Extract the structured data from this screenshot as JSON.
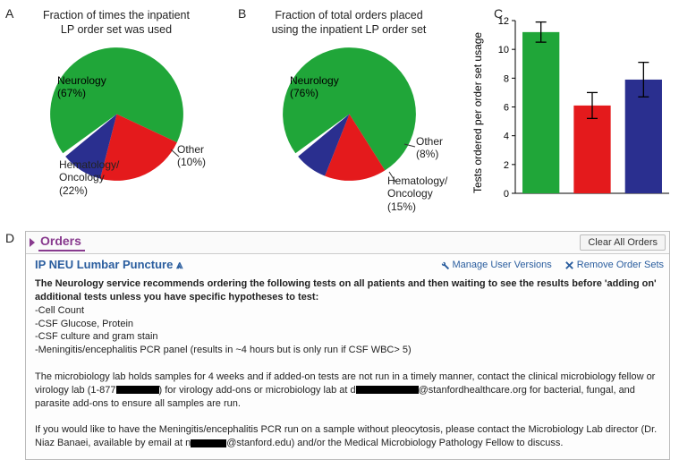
{
  "panelA": {
    "label": "A",
    "title": "Fraction of times the inpatient\nLP order set was used",
    "pie": {
      "slices": [
        {
          "label": "Neurology",
          "pct": 67,
          "color": "#20a639"
        },
        {
          "label": "Hematology/\nOncology",
          "pct": 22,
          "color": "#e41a1c"
        },
        {
          "label": "Other",
          "pct": 10,
          "color": "#2a2f8f"
        }
      ],
      "rotation_start_deg": 144
    },
    "callouts": {
      "neuro": "Neurology\n(67%)",
      "hemeonc": "Hematology/\nOncology\n(22%)",
      "other": "Other\n(10%)"
    }
  },
  "panelB": {
    "label": "B",
    "title": "Fraction of total orders placed\nusing the inpatient LP order set",
    "pie": {
      "slices": [
        {
          "label": "Neurology",
          "pct": 76,
          "color": "#20a639"
        },
        {
          "label": "Hematology/Oncology",
          "pct": 15,
          "color": "#e41a1c"
        },
        {
          "label": "Other",
          "pct": 8,
          "color": "#2a2f8f"
        }
      ],
      "rotation_start_deg": 144
    },
    "callouts": {
      "neuro": "Neurology\n(76%)",
      "hemeonc": "Hematology/\nOncology\n(15%)",
      "other": "Other\n(8%)"
    }
  },
  "panelC": {
    "label": "C",
    "ylabel": "Tests ordered per order set usage",
    "ylim": [
      0,
      12
    ],
    "ytick_step": 2,
    "bars": [
      {
        "value": 11.2,
        "err": 0.7,
        "color": "#20a639"
      },
      {
        "value": 6.1,
        "err": 0.9,
        "color": "#e41a1c"
      },
      {
        "value": 7.9,
        "err": 1.2,
        "color": "#2a2f8f"
      }
    ],
    "axis_fontsize": 11
  },
  "panelD": {
    "label": "D",
    "orders_header": "Orders",
    "clear_btn": "Clear All Orders",
    "section_title": "IP NEU Lumbar Puncture ⩓",
    "manage_link": "Manage User Versions",
    "remove_link": "Remove Order Sets",
    "body_bold": "The Neurology service recommends ordering the following tests on all patients and then waiting to see the results before 'adding on' additional tests unless you have specific hypotheses to test:",
    "body_list": [
      "-Cell Count",
      "-CSF Glucose, Protein",
      "-CSF culture and gram stain",
      "-Meningitis/encephalitis PCR panel (results in ~4 hours but is only run if CSF WBC> 5)"
    ],
    "para2_a": "The microbiology lab holds samples for 4 weeks and if added-on tests are not run in a timely manner, contact the clinical microbiology fellow or virology lab (1-877",
    "para2_b": ") for virology add-ons or microbiology lab at d",
    "para2_c": "@stanfordhealthcare.org for bacterial, fungal, and parasite add-ons to ensure all samples are run.",
    "para3_a": "If you would like to have the Meningitis/encephalitis PCR run on a sample without pleocytosis, please contact the Microbiology Lab director (Dr. Niaz Banaei, available by email at n",
    "para3_b": "@stanford.edu) and/or the Medical Microbiology Pathology Fellow to discuss."
  }
}
